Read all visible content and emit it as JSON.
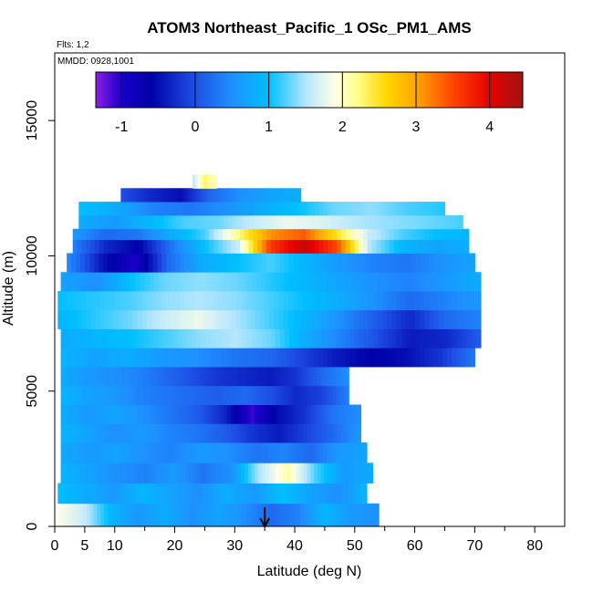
{
  "chart_data": {
    "type": "heatmap",
    "title": "ATOM3 Northeast_Pacific_1 OSc_PM1_AMS",
    "flights_label": "Flts: 1,2",
    "dates_label": "MMDD: 0928,1001",
    "xlabel": "Latitude (deg N)",
    "ylabel": "Altitude (m)",
    "xlim": [
      0,
      85
    ],
    "ylim": [
      0,
      17500
    ],
    "x_ticks": [
      0,
      5,
      10,
      20,
      30,
      40,
      50,
      60,
      70,
      80
    ],
    "y_ticks": [
      0,
      5000,
      10000,
      15000
    ],
    "y_tick_labels": [
      "0",
      "5000",
      "10000",
      "15000"
    ],
    "colorbar": {
      "range": [
        -1.35,
        4.45
      ],
      "ticks": [
        -1,
        0,
        1,
        2,
        3,
        4
      ],
      "tick_labels": [
        "-1",
        "0",
        "1",
        "2",
        "3",
        "4"
      ],
      "stops": [
        {
          "v": -1.35,
          "c": "#8c1ee6"
        },
        {
          "v": -1.0,
          "c": "#1a00c8"
        },
        {
          "v": -0.6,
          "c": "#0000a8"
        },
        {
          "v": 0.0,
          "c": "#1e50e6"
        },
        {
          "v": 0.5,
          "c": "#1e90ff"
        },
        {
          "v": 1.0,
          "c": "#00bfff"
        },
        {
          "v": 1.5,
          "c": "#b4e6ff"
        },
        {
          "v": 1.9,
          "c": "#ffffe6"
        },
        {
          "v": 2.2,
          "c": "#ffff8c"
        },
        {
          "v": 2.6,
          "c": "#ffd700"
        },
        {
          "v": 3.0,
          "c": "#ffa500"
        },
        {
          "v": 3.5,
          "c": "#ff4500"
        },
        {
          "v": 4.0,
          "c": "#e60000"
        },
        {
          "v": 4.45,
          "c": "#a01414"
        }
      ]
    },
    "flight_marker": {
      "latitude": 35,
      "label": "arrow"
    },
    "rows": [
      {
        "alt": [
          0,
          850
        ],
        "lat": [
          0.5,
          54
        ],
        "values": [
          1.9,
          1.6,
          0.9,
          0.6,
          0.8,
          0.5,
          0.7,
          0.5,
          0.2,
          0.4,
          0.9,
          0.6,
          0.5
        ]
      },
      {
        "alt": [
          850,
          1600
        ],
        "lat": [
          0.5,
          52
        ],
        "values": [
          1.0,
          0.8,
          0.6,
          0.9,
          0.7,
          0.5,
          0.8,
          0.6,
          1.0,
          0.7,
          0.5,
          0.9
        ]
      },
      {
        "alt": [
          1600,
          2350
        ],
        "lat": [
          1,
          53
        ],
        "values": [
          0.9,
          0.7,
          0.5,
          0.4,
          0.6,
          0.3,
          0.5,
          1.5,
          2.1,
          1.2,
          0.6,
          0.8
        ]
      },
      {
        "alt": [
          2350,
          3100
        ],
        "lat": [
          1,
          52
        ],
        "values": [
          0.8,
          0.6,
          0.7,
          0.5,
          0.4,
          0.6,
          0.5,
          0.3,
          0.4,
          0.2,
          0.6,
          0.7
        ]
      },
      {
        "alt": [
          3100,
          3800
        ],
        "lat": [
          1,
          51
        ],
        "values": [
          0.9,
          0.7,
          0.5,
          0.6,
          0.4,
          0.3,
          0.1,
          -0.2,
          -0.4,
          -0.1,
          0.2,
          0.6
        ]
      },
      {
        "alt": [
          3800,
          4500
        ],
        "lat": [
          1,
          51
        ],
        "values": [
          0.8,
          0.6,
          0.7,
          0.5,
          0.3,
          0.1,
          -0.3,
          -1.1,
          -0.5,
          -0.2,
          0.3,
          0.5
        ]
      },
      {
        "alt": [
          4500,
          5200
        ],
        "lat": [
          1,
          49
        ],
        "values": [
          0.9,
          0.7,
          0.6,
          0.4,
          0.3,
          0.2,
          0.1,
          0.2,
          0.0,
          -0.3,
          -0.1,
          0.4
        ]
      },
      {
        "alt": [
          5200,
          5900
        ],
        "lat": [
          1,
          49
        ],
        "values": [
          0.8,
          0.6,
          0.5,
          0.4,
          0.2,
          0.0,
          -0.2,
          -0.3,
          -0.4,
          -0.2,
          0.2,
          0.5
        ]
      },
      {
        "alt": [
          5900,
          6600
        ],
        "lat": [
          1,
          70
        ],
        "values": [
          0.9,
          0.7,
          0.8,
          0.6,
          0.5,
          0.3,
          0.2,
          -0.1,
          -0.4,
          -0.6,
          -0.5,
          -0.2,
          0.3
        ]
      },
      {
        "alt": [
          6600,
          7300
        ],
        "lat": [
          1,
          71
        ],
        "values": [
          0.8,
          0.9,
          1.0,
          1.2,
          1.4,
          1.5,
          1.3,
          0.8,
          0.4,
          0.0,
          -0.4,
          -0.3,
          0.1
        ]
      },
      {
        "alt": [
          7300,
          8000
        ],
        "lat": [
          0.5,
          71
        ],
        "values": [
          0.9,
          1.1,
          1.3,
          1.6,
          1.8,
          1.5,
          1.2,
          0.9,
          0.5,
          0.1,
          -0.3,
          0.2,
          0.4
        ]
      },
      {
        "alt": [
          8000,
          8700
        ],
        "lat": [
          0.5,
          71
        ],
        "values": [
          1.0,
          1.1,
          1.2,
          1.4,
          1.5,
          1.4,
          1.2,
          1.0,
          0.8,
          0.5,
          0.2,
          0.4,
          0.6
        ]
      },
      {
        "alt": [
          8700,
          9400
        ],
        "lat": [
          1,
          71
        ],
        "values": [
          0.7,
          0.5,
          1.0,
          1.3,
          1.4,
          1.3,
          1.1,
          0.9,
          0.7,
          0.5,
          0.4,
          0.6,
          0.8
        ]
      },
      {
        "alt": [
          9400,
          10100
        ],
        "lat": [
          2,
          70
        ],
        "values": [
          0.5,
          -0.4,
          -1.0,
          0.2,
          0.8,
          1.0,
          1.2,
          0.9,
          0.6,
          0.4,
          0.3,
          0.5,
          0.7
        ]
      },
      {
        "alt": [
          10100,
          10600
        ],
        "lat": [
          3,
          69
        ],
        "values": [
          0.4,
          -0.3,
          -0.6,
          0.3,
          1.0,
          1.6,
          3.6,
          4.2,
          3.5,
          1.5,
          0.9,
          0.7,
          0.8
        ]
      },
      {
        "alt": [
          10600,
          11000
        ],
        "lat": [
          3,
          69
        ],
        "values": [
          0.6,
          0.2,
          0.3,
          0.8,
          1.2,
          2.2,
          3.1,
          3.4,
          2.5,
          1.6,
          1.2,
          1.0,
          0.9
        ]
      },
      {
        "alt": [
          11000,
          11500
        ],
        "lat": [
          4,
          68
        ],
        "values": [
          0.8,
          0.6,
          0.9,
          1.2,
          1.3,
          1.6,
          1.8,
          1.7,
          1.5,
          1.4,
          1.3,
          1.2
        ]
      },
      {
        "alt": [
          11500,
          12000
        ],
        "lat": [
          4,
          65
        ],
        "values": [
          1.0,
          0.8,
          0.4,
          0.3,
          0.5,
          0.8,
          1.0,
          1.3,
          1.4,
          1.2,
          1.1
        ]
      },
      {
        "alt": [
          12000,
          12500
        ],
        "lat": [
          11,
          41
        ],
        "values": [
          0.0,
          -0.3,
          -0.5,
          0.2,
          0.5,
          0.7,
          0.8
        ]
      },
      {
        "alt": [
          12500,
          13000
        ],
        "lat": [
          23,
          27
        ],
        "values": [
          1.5,
          2.3,
          2.0
        ]
      }
    ]
  }
}
